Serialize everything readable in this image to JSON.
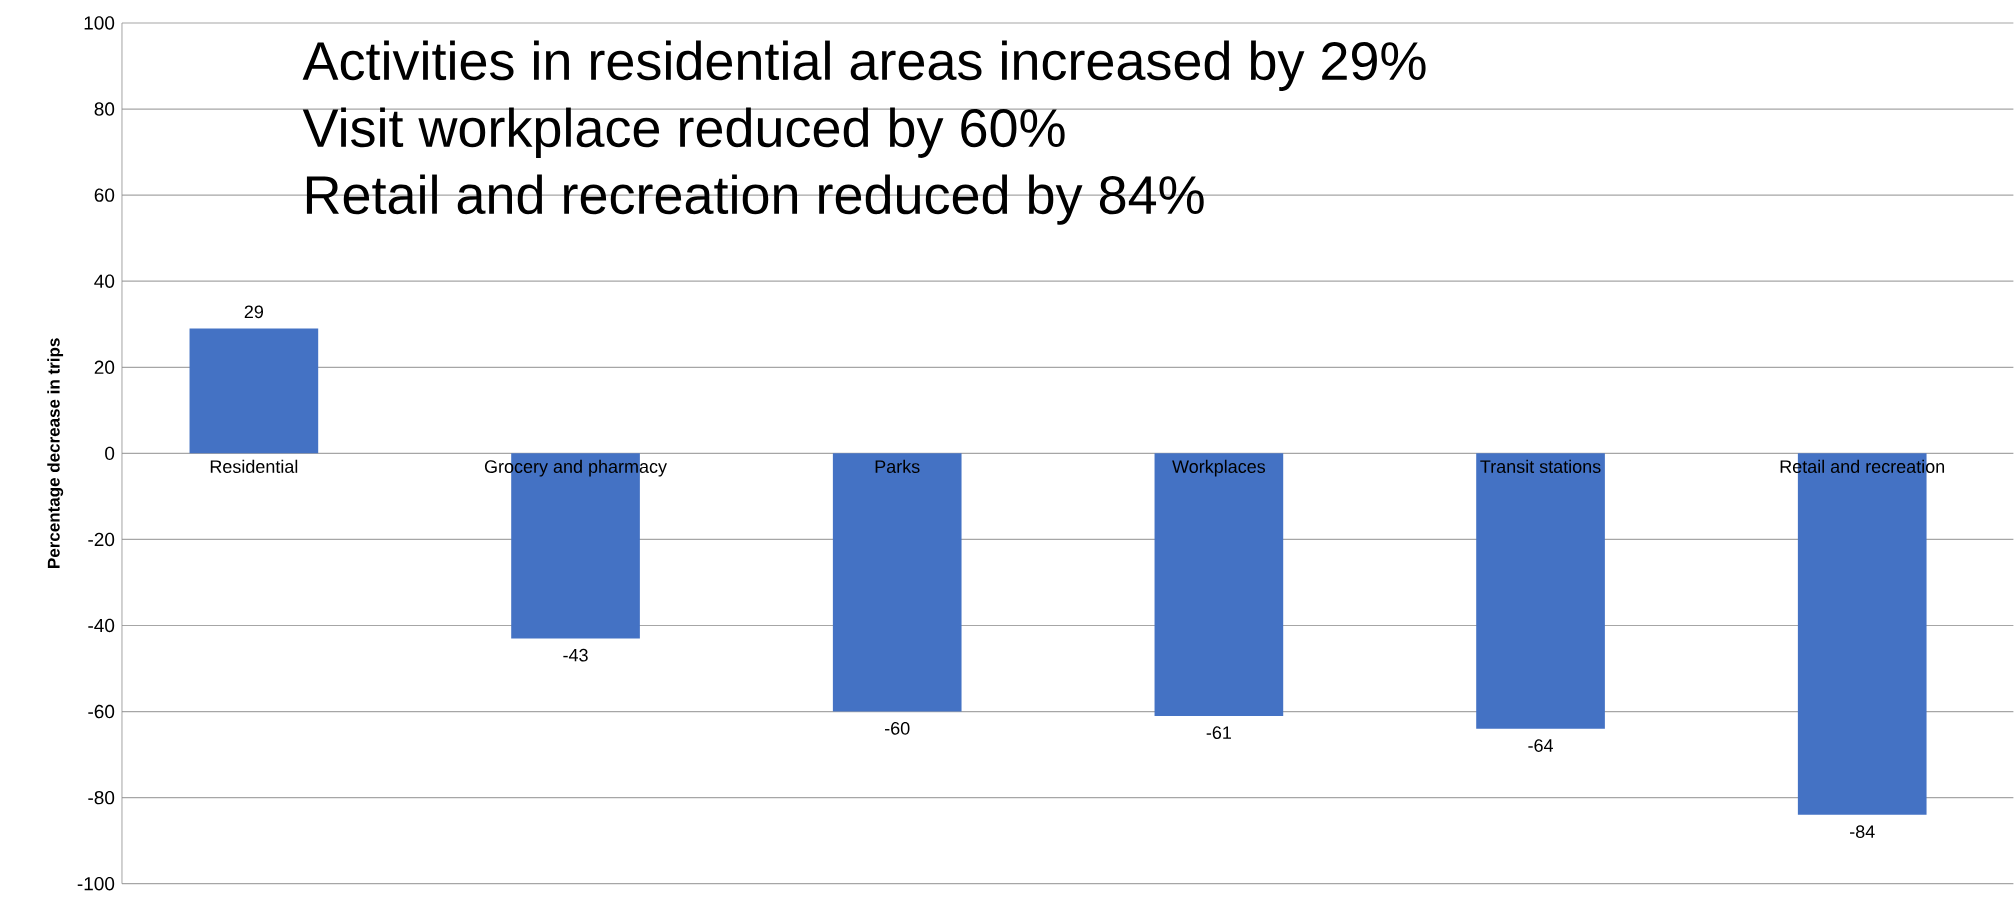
{
  "chart_data": {
    "type": "bar",
    "categories": [
      "Residential",
      "Grocery and pharmacy",
      "Parks",
      "Workplaces",
      "Transit stations",
      "Retail and recreation"
    ],
    "values": [
      29,
      -43,
      -60,
      -61,
      -64,
      -84
    ],
    "color": "#4472c4",
    "ylabel": "Percentage decrease in trips",
    "ylim": [
      -100,
      100
    ],
    "yticks": [
      -100,
      -80,
      -60,
      -40,
      -20,
      0,
      20,
      40,
      60,
      80,
      100
    ],
    "grid": "y",
    "data_labels": true,
    "annotations": [
      "Activities in residential areas increased by 29%",
      "Visit workplace reduced by 60%",
      "Retail and recreation reduced by 84%"
    ]
  }
}
